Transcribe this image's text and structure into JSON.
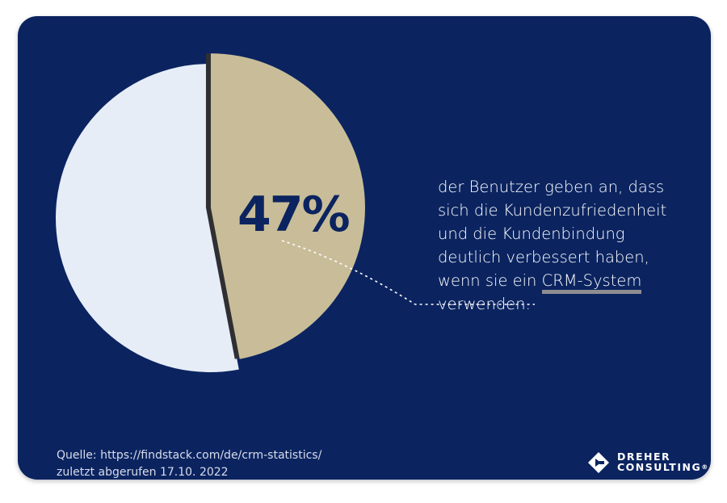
{
  "colors": {
    "background": "#0b2460",
    "slice_highlight": "#c8bd98",
    "slice_rest": "#e6edf7",
    "slice_edge": "#2f2f33",
    "headline": "#0b2460",
    "connector": "#ffffff"
  },
  "chart_data": {
    "type": "pie",
    "slices": [
      {
        "label": "47%",
        "value": 47,
        "exploded": true
      },
      {
        "label": "",
        "value": 53,
        "exploded": false
      }
    ],
    "annotation": "der Benutzer geben an, dass sich die Kundenzufriedenheit und die Kundenbindung deutlich verbessert haben, wenn sie ein CRM-System verwenden."
  },
  "headline": "47%",
  "description": {
    "lines": [
      "der Benutzer geben an, dass",
      "sich die Kundenzufriedenheit",
      "und die Kundenbindung",
      "deutlich verbessert haben,"
    ],
    "line5_prefix": "wenn sie ein ",
    "line5_highlight": "CRM-System",
    "line6": "verwenden."
  },
  "source": {
    "line1": "Quelle: https://findstack.com/de/crm-statistics/",
    "line2": "zuletzt abgerufen 17.10. 2022"
  },
  "logo": {
    "line1": "DREHER",
    "line2": "CONSULTING",
    "mark": "registered-mark",
    "registered": "®"
  }
}
